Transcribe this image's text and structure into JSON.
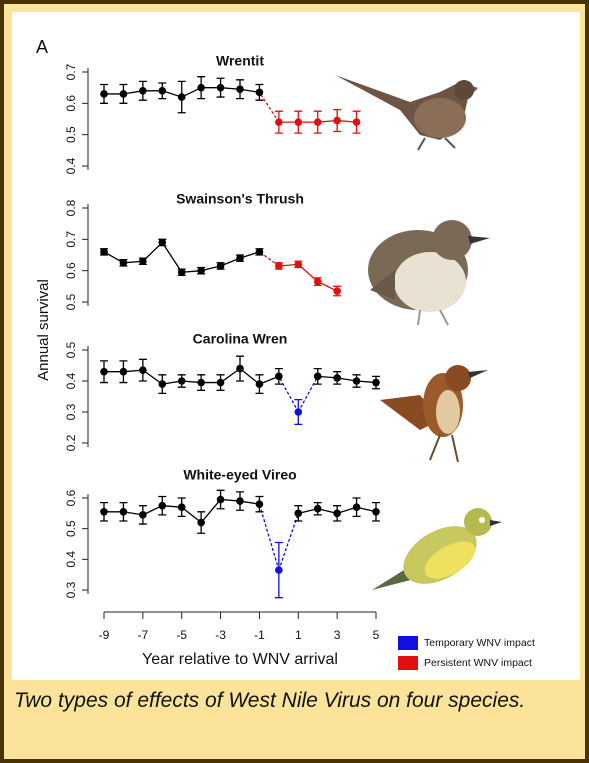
{
  "figure": {
    "label": "A",
    "ylabel": "Annual survival",
    "xlabel": "Year relative to WNV arrival",
    "legend": [
      {
        "label": "Temporary WNV impact",
        "color": "#1010e0"
      },
      {
        "label": "Persistent WNV impact",
        "color": "#e01010"
      }
    ]
  },
  "chart_data": [
    {
      "type": "line",
      "title": "Wrentit",
      "x": [
        -9,
        -8,
        -7,
        -6,
        -5,
        -4,
        -3,
        -2,
        -1,
        0,
        1,
        2,
        3,
        4
      ],
      "xlim": [
        -9,
        5
      ],
      "ylim": [
        0.4,
        0.7
      ],
      "yticks": [
        0.4,
        0.5,
        0.6,
        0.7
      ],
      "series": [
        {
          "color": "#000000",
          "values": [
            0.63,
            0.63,
            0.64,
            0.64,
            0.62,
            0.65,
            0.65,
            0.645,
            0.635,
            null,
            null,
            null,
            null,
            null
          ],
          "errors": [
            0.03,
            0.03,
            0.03,
            0.025,
            0.05,
            0.035,
            0.03,
            0.03,
            0.025,
            null,
            null,
            null,
            null,
            null
          ]
        },
        {
          "color": "#e01010",
          "values": [
            null,
            null,
            null,
            null,
            null,
            null,
            null,
            null,
            null,
            0.54,
            0.54,
            0.54,
            0.545,
            0.54
          ],
          "errors": [
            null,
            null,
            null,
            null,
            null,
            null,
            null,
            null,
            null,
            0.035,
            0.035,
            0.035,
            0.035,
            0.035
          ]
        }
      ]
    },
    {
      "type": "line",
      "title": "Swainson's Thrush",
      "x": [
        -9,
        -8,
        -7,
        -6,
        -5,
        -4,
        -3,
        -2,
        -1,
        0,
        1,
        2,
        3
      ],
      "xlim": [
        -9,
        5
      ],
      "ylim": [
        0.5,
        0.8
      ],
      "yticks": [
        0.5,
        0.6,
        0.7,
        0.8
      ],
      "series": [
        {
          "color": "#000000",
          "values": [
            0.66,
            0.625,
            0.63,
            0.69,
            0.595,
            0.6,
            0.615,
            0.64,
            0.66,
            null,
            null,
            null,
            null
          ],
          "errors": [
            0.01,
            0.01,
            0.01,
            0.01,
            0.01,
            0.01,
            0.01,
            0.01,
            0.01,
            null,
            null,
            null,
            null
          ]
        },
        {
          "color": "#e01010",
          "values": [
            null,
            null,
            null,
            null,
            null,
            null,
            null,
            null,
            null,
            0.615,
            0.62,
            0.565,
            0.535
          ],
          "errors": [
            null,
            null,
            null,
            null,
            null,
            null,
            null,
            null,
            null,
            0.01,
            0.01,
            0.012,
            0.015
          ]
        }
      ]
    },
    {
      "type": "line",
      "title": "Carolina Wren",
      "x": [
        -9,
        -8,
        -7,
        -6,
        -5,
        -4,
        -3,
        -2,
        -1,
        0,
        1,
        2,
        3,
        4,
        5
      ],
      "xlim": [
        -9,
        5
      ],
      "ylim": [
        0.2,
        0.5
      ],
      "yticks": [
        0.2,
        0.3,
        0.4,
        0.5
      ],
      "series": [
        {
          "color": "#000000",
          "values": [
            0.43,
            0.43,
            0.435,
            0.39,
            0.4,
            0.395,
            0.395,
            0.44,
            0.39,
            0.415,
            null,
            0.415,
            0.41,
            0.4,
            0.395
          ],
          "errors": [
            0.035,
            0.035,
            0.035,
            0.03,
            0.02,
            0.025,
            0.025,
            0.04,
            0.03,
            0.025,
            null,
            0.025,
            0.02,
            0.02,
            0.02
          ]
        },
        {
          "color": "#1010e0",
          "values": [
            null,
            null,
            null,
            null,
            null,
            null,
            null,
            null,
            null,
            null,
            0.3,
            null,
            null,
            null,
            null
          ],
          "errors": [
            null,
            null,
            null,
            null,
            null,
            null,
            null,
            null,
            null,
            null,
            0.04,
            null,
            null,
            null,
            null
          ]
        }
      ]
    },
    {
      "type": "line",
      "title": "White-eyed Vireo",
      "x": [
        -9,
        -8,
        -7,
        -6,
        -5,
        -4,
        -3,
        -2,
        -1,
        0,
        1,
        2,
        3,
        4,
        5
      ],
      "xlim": [
        -9,
        5
      ],
      "xticks": [
        -9,
        -7,
        -5,
        -3,
        -1,
        1,
        3,
        5
      ],
      "ylim": [
        0.3,
        0.6
      ],
      "yticks": [
        0.3,
        0.4,
        0.5,
        0.6
      ],
      "series": [
        {
          "color": "#000000",
          "values": [
            0.555,
            0.555,
            0.545,
            0.575,
            0.57,
            0.52,
            0.595,
            0.59,
            0.58,
            null,
            0.55,
            0.565,
            0.55,
            0.57,
            0.555
          ],
          "errors": [
            0.03,
            0.03,
            0.03,
            0.03,
            0.03,
            0.035,
            0.03,
            0.03,
            0.025,
            null,
            0.025,
            0.02,
            0.025,
            0.03,
            0.03
          ]
        },
        {
          "color": "#1010e0",
          "values": [
            null,
            null,
            null,
            null,
            null,
            null,
            null,
            null,
            null,
            0.365,
            null,
            null,
            null,
            null,
            null
          ],
          "errors": [
            null,
            null,
            null,
            null,
            null,
            null,
            null,
            null,
            null,
            0.09,
            null,
            null,
            null,
            null,
            null
          ]
        }
      ]
    }
  ],
  "caption": "Two types of effects of West Nile Virus on four species."
}
